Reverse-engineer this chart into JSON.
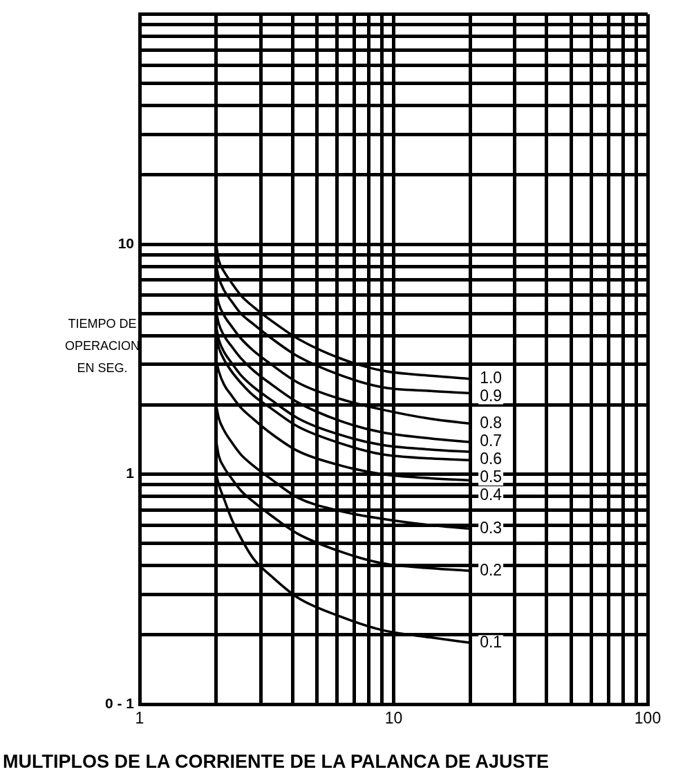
{
  "chart_data": {
    "type": "line",
    "xlabel": "MULTIPLOS DE LA CORRIENTE DE LA PALANCA DE AJUSTE",
    "ylabel": "TIEMPO DE OPERACION EN SEG.",
    "log": "xy",
    "grid": true,
    "marker": "none",
    "line_style": "solid",
    "xlim": [
      1,
      100
    ],
    "ylim": [
      0.1,
      100
    ],
    "xticks": [
      1,
      {
        "value": 2,
        "label": null
      },
      {
        "value": 3,
        "label": null
      },
      {
        "value": 4,
        "label": null
      },
      {
        "value": 5,
        "label": null
      },
      {
        "value": 6,
        "label": null
      },
      {
        "value": 7,
        "label": null
      },
      {
        "value": 8,
        "label": null
      },
      {
        "value": 9,
        "label": null
      },
      10,
      {
        "value": 20,
        "label": null
      },
      {
        "value": 30,
        "label": null
      },
      {
        "value": 40,
        "label": null
      },
      {
        "value": 50,
        "label": null
      },
      {
        "value": 60,
        "label": null
      },
      {
        "value": 70,
        "label": null
      },
      {
        "value": 80,
        "label": null
      },
      {
        "value": 90,
        "label": null
      },
      100
    ],
    "yticks": [
      {
        "value": 0.1,
        "label": "0 - 1"
      },
      {
        "value": 0.2,
        "label": null
      },
      {
        "value": 0.3,
        "label": null
      },
      {
        "value": 0.4,
        "label": null
      },
      {
        "value": 0.5,
        "label": null
      },
      {
        "value": 0.6,
        "label": null
      },
      {
        "value": 0.7,
        "label": null
      },
      {
        "value": 0.8,
        "label": null
      },
      {
        "value": 0.9,
        "label": null
      },
      1,
      {
        "value": 2,
        "label": null
      },
      {
        "value": 3,
        "label": null
      },
      {
        "value": 4,
        "label": null
      },
      {
        "value": 5,
        "label": null
      },
      {
        "value": 6,
        "label": null
      },
      {
        "value": 7,
        "label": null
      },
      {
        "value": 8,
        "label": null
      },
      {
        "value": 9,
        "label": null
      },
      10,
      {
        "value": 20,
        "label": null
      },
      {
        "value": 30,
        "label": null
      },
      {
        "value": 40,
        "label": null
      },
      {
        "value": 50,
        "label": null
      },
      {
        "value": 60,
        "label": null
      },
      {
        "value": 70,
        "label": null
      },
      {
        "value": 80,
        "label": null
      },
      {
        "value": 90,
        "label": null
      },
      {
        "value": 100,
        "label": null
      }
    ],
    "x": [
      2,
      2.05,
      2.15,
      2.3,
      2.5,
      2.8,
      3.3,
      4.2,
      6.2,
      9,
      14,
      20
    ],
    "series": [
      {
        "name": "1.0",
        "color": "#000000",
        "values": [
          10,
          8.5,
          7.6,
          6.8,
          6.0,
          5.35,
          4.65,
          3.88,
          3.18,
          2.82,
          2.68,
          2.6
        ]
      },
      {
        "name": "0.9",
        "color": "#000000",
        "values": [
          8.1,
          7.15,
          6.3,
          5.65,
          5.0,
          4.5,
          3.9,
          3.25,
          2.69,
          2.39,
          2.3,
          2.25
        ]
      },
      {
        "name": "0.8",
        "color": "#000000",
        "values": [
          6.2,
          5.5,
          4.9,
          4.4,
          3.9,
          3.45,
          3.0,
          2.5,
          2.12,
          1.91,
          1.74,
          1.66
        ]
      },
      {
        "name": "0.7",
        "color": "#000000",
        "values": [
          5.1,
          4.5,
          4.0,
          3.6,
          3.2,
          2.83,
          2.46,
          2.05,
          1.7,
          1.52,
          1.43,
          1.38
        ]
      },
      {
        "name": "0.6",
        "color": "#000000",
        "values": [
          4.4,
          3.85,
          3.4,
          3.05,
          2.7,
          2.4,
          2.1,
          1.75,
          1.48,
          1.34,
          1.28,
          1.25
        ]
      },
      {
        "name": "0.5",
        "color": "#000000",
        "values": [
          4.0,
          3.55,
          3.15,
          2.8,
          2.5,
          2.2,
          1.93,
          1.61,
          1.36,
          1.22,
          1.17,
          1.15
        ]
      },
      {
        "name": "0.4",
        "color": "#000000",
        "values": [
          3.15,
          2.8,
          2.45,
          2.2,
          1.95,
          1.74,
          1.5,
          1.26,
          1.09,
          1.0,
          0.96,
          0.94
        ]
      },
      {
        "name": "0.3",
        "color": "#000000",
        "values": [
          2.0,
          1.75,
          1.55,
          1.38,
          1.22,
          1.09,
          0.95,
          0.79,
          0.69,
          0.64,
          0.6,
          0.58
        ]
      },
      {
        "name": "0.2",
        "color": "#000000",
        "values": [
          1.4,
          1.2,
          1.07,
          0.96,
          0.85,
          0.76,
          0.66,
          0.55,
          0.46,
          0.41,
          0.39,
          0.38
        ]
      },
      {
        "name": "0.1",
        "color": "#000000",
        "values": [
          1.0,
          0.9,
          0.78,
          0.64,
          0.53,
          0.43,
          0.36,
          0.29,
          0.24,
          0.21,
          0.195,
          0.185
        ]
      }
    ]
  }
}
